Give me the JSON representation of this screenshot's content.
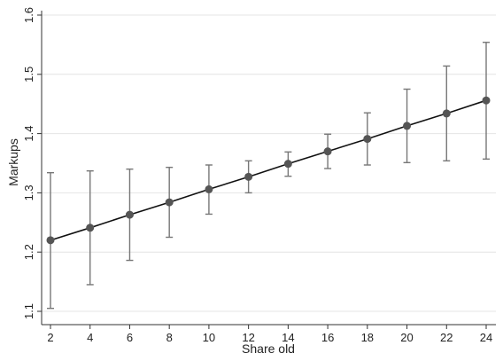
{
  "chart_data": {
    "type": "scatter",
    "title": "",
    "xlabel": "Share old",
    "ylabel": "Markups",
    "xlim": [
      2,
      24
    ],
    "ylim": [
      1.1,
      1.6
    ],
    "xticks": [
      "2",
      "4",
      "6",
      "8",
      "10",
      "12",
      "14",
      "16",
      "18",
      "20",
      "22",
      "24"
    ],
    "yticks": [
      "1.1",
      "1.2",
      "1.3",
      "1.4",
      "1.5",
      "1.6"
    ],
    "grid": true,
    "fit_line": true,
    "series": [
      {
        "x": [
          2,
          4,
          6,
          8,
          10,
          12,
          14,
          16,
          18,
          20,
          22,
          24
        ],
        "y": [
          1.22,
          1.241,
          1.263,
          1.284,
          1.306,
          1.327,
          1.349,
          1.37,
          1.391,
          1.413,
          1.434,
          1.456
        ],
        "ci_low": [
          1.105,
          1.145,
          1.186,
          1.225,
          1.264,
          1.3,
          1.328,
          1.341,
          1.347,
          1.351,
          1.354,
          1.357
        ],
        "ci_high": [
          1.334,
          1.337,
          1.34,
          1.343,
          1.347,
          1.354,
          1.369,
          1.399,
          1.435,
          1.475,
          1.514,
          1.554
        ]
      }
    ],
    "colors": {
      "marker": "#555555",
      "error_bar": "#777777",
      "line": "#111111",
      "grid": "#e4e4e4",
      "axis": "#333333"
    }
  }
}
